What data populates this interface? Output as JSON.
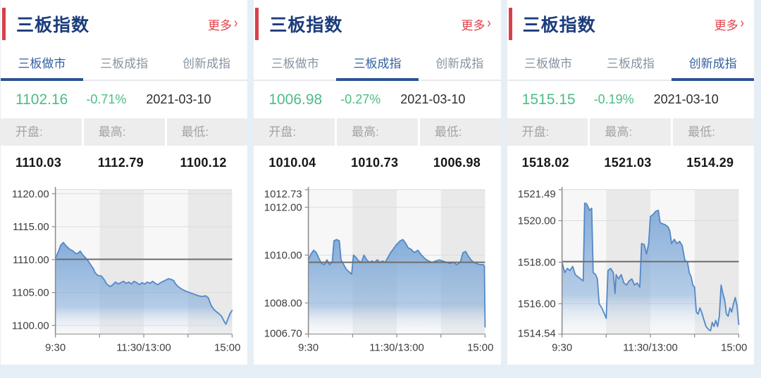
{
  "colors": {
    "page_bg": "#e7eff6",
    "accent_red": "#d8404a",
    "more_red": "#e2404a",
    "title_navy": "#1c3c7c",
    "tab_active": "#33619f",
    "tab_underline": "#2a5391",
    "tab_inactive": "#8793a1",
    "quote_green": "#4cbc86",
    "band_light": "#f7f7f7",
    "band_dark": "#e9e9e9",
    "grid": "#dcdcdc",
    "axis": "#8a8a8a",
    "axis_text": "#3c3c3c",
    "prev_close_line": "#6e6e6e",
    "series_line": "#5488c7",
    "area_top": "#7fa9d8",
    "area_bottom": "#ffffff"
  },
  "panels": [
    {
      "title": "三板指数",
      "more_label": "更多",
      "more_arrow": "›",
      "tabs": [
        {
          "label": "三板做市",
          "active": true
        },
        {
          "label": "三板成指",
          "active": false
        },
        {
          "label": "创新成指",
          "active": false
        }
      ],
      "quote": {
        "price": "1102.16",
        "change": "-0.71%",
        "date": "2021-03-10"
      },
      "stats": {
        "labels": [
          "开盘:",
          "最高:",
          "最低:"
        ],
        "values": [
          "1110.03",
          "1112.79",
          "1100.12"
        ]
      }
    },
    {
      "title": "三板指数",
      "more_label": "更多",
      "more_arrow": "›",
      "tabs": [
        {
          "label": "三板做市",
          "active": false
        },
        {
          "label": "三板成指",
          "active": true
        },
        {
          "label": "创新成指",
          "active": false
        }
      ],
      "quote": {
        "price": "1006.98",
        "change": "-0.27%",
        "date": "2021-03-10"
      },
      "stats": {
        "labels": [
          "开盘:",
          "最高:",
          "最低:"
        ],
        "values": [
          "1010.04",
          "1010.73",
          "1006.98"
        ]
      }
    },
    {
      "title": "三板指数",
      "more_label": "更多",
      "more_arrow": "›",
      "tabs": [
        {
          "label": "三板做市",
          "active": false
        },
        {
          "label": "三板成指",
          "active": false
        },
        {
          "label": "创新成指",
          "active": true
        }
      ],
      "quote": {
        "price": "1515.15",
        "change": "-0.19%",
        "date": "2021-03-10"
      },
      "stats": {
        "labels": [
          "开盘:",
          "最高:",
          "最低:"
        ],
        "values": [
          "1518.02",
          "1521.03",
          "1514.29"
        ]
      }
    }
  ],
  "chart_data": [
    {
      "type": "area",
      "name": "三板做市",
      "x_axis": {
        "ticks": [
          0,
          25,
          50,
          75,
          100
        ],
        "labels": [
          "9:30",
          "11:30/13:00",
          "15:00"
        ],
        "label_positions": [
          0,
          50,
          100
        ]
      },
      "y_axis": {
        "min": 1098.7,
        "max": 1120.6,
        "ticks": [
          {
            "value": 1120,
            "label": "1120.00"
          },
          {
            "value": 1115,
            "label": "1115.00"
          },
          {
            "value": 1110,
            "label": "1110.00"
          },
          {
            "value": 1105,
            "label": "1105.00"
          },
          {
            "value": 1100,
            "label": "1100.00"
          }
        ]
      },
      "prev_close": 1110.04,
      "open": 1110.03,
      "high": 1112.79,
      "low": 1100.12,
      "close": 1102.16,
      "change_pct": -0.71,
      "series": [
        [
          0,
          1110.2
        ],
        [
          1.5,
          1111.1
        ],
        [
          3,
          1112.2
        ],
        [
          4.5,
          1112.6
        ],
        [
          6,
          1112.1
        ],
        [
          8,
          1111.6
        ],
        [
          10,
          1111.3
        ],
        [
          11.5,
          1110.9
        ],
        [
          13,
          1111.0
        ],
        [
          14,
          1111.3
        ],
        [
          15.5,
          1110.7
        ],
        [
          17,
          1110.3
        ],
        [
          18.5,
          1109.8
        ],
        [
          20,
          1109.2
        ],
        [
          21.5,
          1108.6
        ],
        [
          22.5,
          1108.0
        ],
        [
          24,
          1107.6
        ],
        [
          26,
          1107.5
        ],
        [
          27.5,
          1107.0
        ],
        [
          29,
          1106.3
        ],
        [
          31,
          1105.9
        ],
        [
          32.5,
          1106.2
        ],
        [
          34,
          1106.6
        ],
        [
          35.5,
          1106.3
        ],
        [
          37,
          1106.5
        ],
        [
          38.5,
          1106.7
        ],
        [
          40,
          1106.4
        ],
        [
          41.5,
          1106.6
        ],
        [
          43,
          1106.3
        ],
        [
          44.5,
          1106.7
        ],
        [
          46,
          1106.5
        ],
        [
          47.5,
          1106.2
        ],
        [
          49,
          1106.5
        ],
        [
          50.5,
          1106.3
        ],
        [
          52,
          1106.6
        ],
        [
          53.5,
          1106.4
        ],
        [
          55,
          1106.7
        ],
        [
          56.5,
          1106.4
        ],
        [
          58,
          1106.2
        ],
        [
          59.5,
          1106.5
        ],
        [
          61,
          1106.7
        ],
        [
          62.5,
          1106.9
        ],
        [
          64,
          1107.1
        ],
        [
          65.5,
          1107.0
        ],
        [
          67,
          1106.8
        ],
        [
          68,
          1106.3
        ],
        [
          69.5,
          1105.9
        ],
        [
          71,
          1105.6
        ],
        [
          73,
          1105.3
        ],
        [
          75,
          1105.1
        ],
        [
          77,
          1104.9
        ],
        [
          79,
          1104.7
        ],
        [
          81,
          1104.5
        ],
        [
          83,
          1104.4
        ],
        [
          85,
          1104.5
        ],
        [
          86.5,
          1104.2
        ],
        [
          88,
          1103.1
        ],
        [
          89.5,
          1102.5
        ],
        [
          91,
          1102.1
        ],
        [
          92.5,
          1101.8
        ],
        [
          94,
          1101.4
        ],
        [
          95.5,
          1100.6
        ],
        [
          96.5,
          1100.2
        ],
        [
          97.5,
          1100.9
        ],
        [
          98.8,
          1101.8
        ],
        [
          100,
          1102.3
        ]
      ]
    },
    {
      "type": "area",
      "name": "三板成指",
      "x_axis": {
        "ticks": [
          0,
          25,
          50,
          75,
          100
        ],
        "labels": [
          "9:30",
          "11:30/13:00",
          "15:00"
        ],
        "label_positions": [
          0,
          50,
          100
        ]
      },
      "y_axis": {
        "min": 1006.7,
        "max": 1012.73,
        "ticks": [
          {
            "value": 1012.73,
            "label": "1012.73"
          },
          {
            "value": 1012,
            "label": "1012.00"
          },
          {
            "value": 1010,
            "label": "1010.00"
          },
          {
            "value": 1008,
            "label": "1008.00"
          },
          {
            "value": 1006.7,
            "label": "1006.70"
          }
        ]
      },
      "prev_close": 1009.7,
      "open": 1010.04,
      "high": 1010.73,
      "low": 1006.98,
      "close": 1006.98,
      "change_pct": -0.27,
      "series": [
        [
          0,
          1009.8
        ],
        [
          1.5,
          1010.05
        ],
        [
          3,
          1010.2
        ],
        [
          4.5,
          1010.1
        ],
        [
          6,
          1009.85
        ],
        [
          7.5,
          1009.65
        ],
        [
          9,
          1009.6
        ],
        [
          10.5,
          1009.8
        ],
        [
          12,
          1009.6
        ],
        [
          13.5,
          1009.7
        ],
        [
          14.5,
          1010.6
        ],
        [
          16,
          1010.65
        ],
        [
          17.5,
          1010.6
        ],
        [
          18.5,
          1009.8
        ],
        [
          20,
          1009.6
        ],
        [
          21.5,
          1009.4
        ],
        [
          23,
          1009.3
        ],
        [
          24.5,
          1009.2
        ],
        [
          25.5,
          1010.0
        ],
        [
          27,
          1009.9
        ],
        [
          28.5,
          1009.75
        ],
        [
          30,
          1009.7
        ],
        [
          31.5,
          1010.0
        ],
        [
          33,
          1009.8
        ],
        [
          34.5,
          1009.7
        ],
        [
          36,
          1009.75
        ],
        [
          37.5,
          1009.7
        ],
        [
          39,
          1009.8
        ],
        [
          40.5,
          1009.7
        ],
        [
          42,
          1009.75
        ],
        [
          43.5,
          1009.7
        ],
        [
          45,
          1009.9
        ],
        [
          46.5,
          1010.1
        ],
        [
          48,
          1010.25
        ],
        [
          50,
          1010.45
        ],
        [
          52,
          1010.6
        ],
        [
          53.5,
          1010.65
        ],
        [
          55,
          1010.5
        ],
        [
          56.5,
          1010.3
        ],
        [
          58,
          1010.25
        ],
        [
          60,
          1010.1
        ],
        [
          62,
          1010.2
        ],
        [
          64,
          1010.0
        ],
        [
          66,
          1009.85
        ],
        [
          68,
          1009.75
        ],
        [
          70,
          1009.7
        ],
        [
          72,
          1009.75
        ],
        [
          74,
          1009.8
        ],
        [
          76,
          1009.75
        ],
        [
          78,
          1009.7
        ],
        [
          80,
          1009.65
        ],
        [
          82,
          1009.7
        ],
        [
          84,
          1009.6
        ],
        [
          86,
          1009.7
        ],
        [
          87.5,
          1010.1
        ],
        [
          89,
          1010.15
        ],
        [
          90.5,
          1009.95
        ],
        [
          92,
          1009.8
        ],
        [
          93.5,
          1009.7
        ],
        [
          95,
          1009.65
        ],
        [
          97,
          1009.6
        ],
        [
          99,
          1009.6
        ],
        [
          99.6,
          1009.55
        ],
        [
          100,
          1007.0
        ]
      ]
    },
    {
      "type": "area",
      "name": "创新成指",
      "x_axis": {
        "ticks": [
          0,
          25,
          50,
          75,
          100
        ],
        "labels": [
          "9:30",
          "11:30/13:00",
          "15:00"
        ],
        "label_positions": [
          0,
          50,
          100
        ]
      },
      "y_axis": {
        "min": 1514.54,
        "max": 1521.49,
        "ticks": [
          {
            "value": 1521.49,
            "label": "1521.49"
          },
          {
            "value": 1520,
            "label": "1520.00"
          },
          {
            "value": 1518,
            "label": "1518.00"
          },
          {
            "value": 1516,
            "label": "1516.00"
          },
          {
            "value": 1514.54,
            "label": "1514.54"
          }
        ]
      },
      "prev_close": 1518.03,
      "open": 1518.02,
      "high": 1521.03,
      "low": 1514.29,
      "close": 1515.15,
      "change_pct": -0.19,
      "series": [
        [
          0,
          1518.0
        ],
        [
          1.5,
          1517.5
        ],
        [
          3,
          1517.7
        ],
        [
          4.5,
          1517.6
        ],
        [
          6,
          1517.8
        ],
        [
          7.5,
          1517.4
        ],
        [
          9,
          1517.3
        ],
        [
          10.5,
          1517.2
        ],
        [
          12,
          1517.1
        ],
        [
          12.8,
          1520.85
        ],
        [
          14,
          1520.8
        ],
        [
          15.5,
          1520.5
        ],
        [
          16.8,
          1520.6
        ],
        [
          17.6,
          1517.5
        ],
        [
          19,
          1517.4
        ],
        [
          20,
          1517.2
        ],
        [
          21,
          1516.0
        ],
        [
          22.5,
          1515.8
        ],
        [
          24,
          1515.5
        ],
        [
          25,
          1515.3
        ],
        [
          26,
          1517.6
        ],
        [
          27.5,
          1517.7
        ],
        [
          29,
          1517.5
        ],
        [
          30,
          1516.5
        ],
        [
          30.6,
          1517.4
        ],
        [
          32,
          1517.2
        ],
        [
          33.5,
          1517.4
        ],
        [
          35,
          1517.0
        ],
        [
          36.5,
          1516.9
        ],
        [
          38,
          1517.1
        ],
        [
          39.5,
          1517.2
        ],
        [
          41,
          1516.9
        ],
        [
          42.5,
          1517.0
        ],
        [
          44,
          1516.8
        ],
        [
          45,
          1518.9
        ],
        [
          46.5,
          1518.85
        ],
        [
          47.8,
          1518.4
        ],
        [
          49,
          1518.9
        ],
        [
          50,
          1520.2
        ],
        [
          51.5,
          1520.3
        ],
        [
          53,
          1520.45
        ],
        [
          54.5,
          1520.5
        ],
        [
          55.5,
          1519.9
        ],
        [
          57,
          1519.85
        ],
        [
          58.5,
          1519.8
        ],
        [
          60,
          1519.7
        ],
        [
          61,
          1519.5
        ],
        [
          62,
          1518.9
        ],
        [
          63.5,
          1519.1
        ],
        [
          65,
          1518.9
        ],
        [
          66.5,
          1519.0
        ],
        [
          68,
          1518.8
        ],
        [
          69.5,
          1518.1
        ],
        [
          71,
          1518.0
        ],
        [
          72,
          1517.5
        ],
        [
          73,
          1517.3
        ],
        [
          74,
          1516.9
        ],
        [
          75,
          1516.8
        ],
        [
          76,
          1515.6
        ],
        [
          77,
          1515.5
        ],
        [
          78,
          1515.8
        ],
        [
          79,
          1515.6
        ],
        [
          80,
          1515.3
        ],
        [
          81.5,
          1514.9
        ],
        [
          83,
          1514.75
        ],
        [
          84,
          1514.7
        ],
        [
          85,
          1515.1
        ],
        [
          86,
          1514.9
        ],
        [
          87,
          1515.2
        ],
        [
          88,
          1514.9
        ],
        [
          89,
          1515.4
        ],
        [
          90,
          1516.9
        ],
        [
          91,
          1516.5
        ],
        [
          92,
          1516.2
        ],
        [
          93,
          1515.5
        ],
        [
          94,
          1515.4
        ],
        [
          95,
          1515.8
        ],
        [
          96,
          1515.6
        ],
        [
          97,
          1516.0
        ],
        [
          98,
          1516.3
        ],
        [
          99,
          1515.9
        ],
        [
          100,
          1515.0
        ]
      ]
    }
  ]
}
